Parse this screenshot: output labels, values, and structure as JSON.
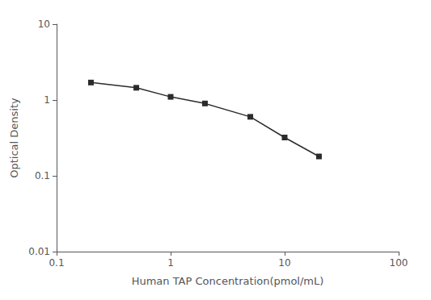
{
  "chart_data": {
    "type": "line",
    "x": [
      0.2,
      0.5,
      1.0,
      2.0,
      5.0,
      10.0,
      20.0
    ],
    "values": [
      1.7,
      1.45,
      1.1,
      0.9,
      0.6,
      0.32,
      0.18
    ],
    "xlabel": "Human TAP Concentration(pmol/mL)",
    "ylabel": "Optical Density",
    "xlim": [
      0.1,
      100
    ],
    "ylim": [
      0.01,
      10
    ],
    "xticks": [
      0.1,
      1,
      10,
      100
    ],
    "yticks": [
      0.01,
      0.1,
      1,
      10
    ],
    "log": true,
    "grid": false,
    "color": "#2b2b2b",
    "marker": "square"
  }
}
